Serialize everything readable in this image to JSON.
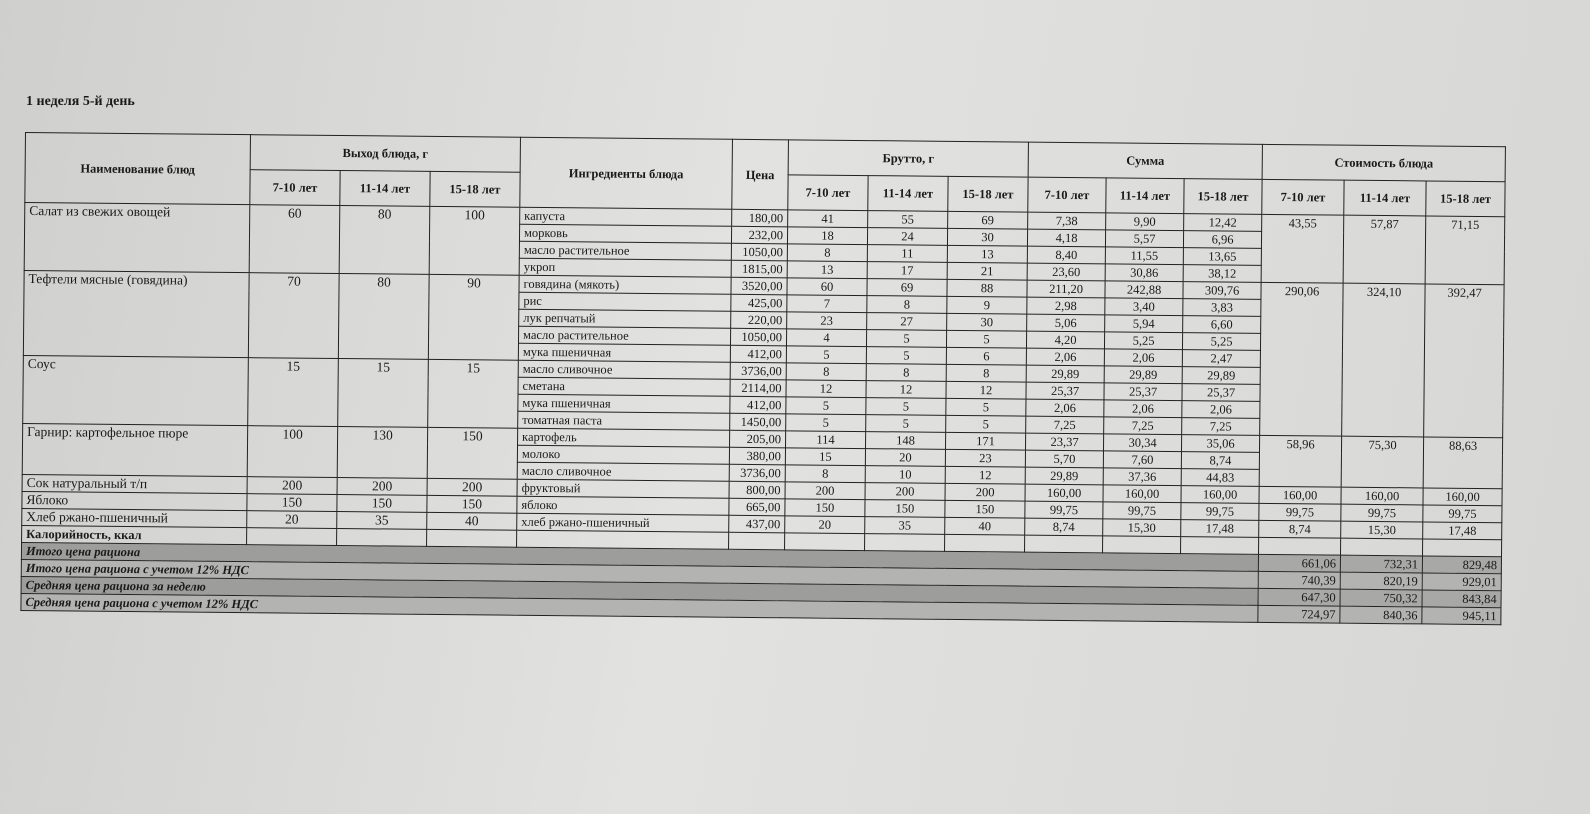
{
  "title": "1 неделя 5-й день",
  "headers": {
    "dish": "Наименование блюд",
    "yield": "Выход блюда, г",
    "ingredients": "Ингредиенты блюда",
    "price": "Цена",
    "brutto": "Брутто, г",
    "sum": "Сумма",
    "cost": "Стоимость блюда",
    "ages": [
      "7-10 лет",
      "11-14 лет",
      "15-18 лет"
    ]
  },
  "dishes": [
    {
      "name": "Салат из свежих овощей",
      "yield": [
        "60",
        "80",
        "100"
      ],
      "ingredients": [
        [
          "капуста",
          "180,00",
          "41",
          "55",
          "69",
          "7,38",
          "9,90",
          "12,42"
        ],
        [
          "морковь",
          "232,00",
          "18",
          "24",
          "30",
          "4,18",
          "5,57",
          "6,96"
        ],
        [
          "масло растительное",
          "1050,00",
          "8",
          "11",
          "13",
          "8,40",
          "11,55",
          "13,65"
        ],
        [
          "укроп",
          "1815,00",
          "13",
          "17",
          "21",
          "23,60",
          "30,86",
          "38,12"
        ]
      ]
    },
    {
      "name": "Тефтели мясные (говядина)",
      "yield": [
        "70",
        "80",
        "90"
      ],
      "ingredients": [
        [
          "говядина (мякоть)",
          "3520,00",
          "60",
          "69",
          "88",
          "211,20",
          "242,88",
          "309,76"
        ],
        [
          "рис",
          "425,00",
          "7",
          "8",
          "9",
          "2,98",
          "3,40",
          "3,83"
        ],
        [
          "лук репчатый",
          "220,00",
          "23",
          "27",
          "30",
          "5,06",
          "5,94",
          "6,60"
        ],
        [
          "масло растительное",
          "1050,00",
          "4",
          "5",
          "5",
          "4,20",
          "5,25",
          "5,25"
        ],
        [
          "мука пшеничная",
          "412,00",
          "5",
          "5",
          "6",
          "2,06",
          "2,06",
          "2,47"
        ]
      ]
    },
    {
      "name": "Соус",
      "yield": [
        "15",
        "15",
        "15"
      ],
      "ingredients": [
        [
          "масло сливочное",
          "3736,00",
          "8",
          "8",
          "8",
          "29,89",
          "29,89",
          "29,89"
        ],
        [
          "сметана",
          "2114,00",
          "12",
          "12",
          "12",
          "25,37",
          "25,37",
          "25,37"
        ],
        [
          "мука пшеничная",
          "412,00",
          "5",
          "5",
          "5",
          "2,06",
          "2,06",
          "2,06"
        ],
        [
          "томатная паста",
          "1450,00",
          "5",
          "5",
          "5",
          "7,25",
          "7,25",
          "7,25"
        ]
      ]
    },
    {
      "name": "Гарнир:  картофельное пюре",
      "yield": [
        "100",
        "130",
        "150"
      ],
      "ingredients": [
        [
          "картофель",
          "205,00",
          "114",
          "148",
          "171",
          "23,37",
          "30,34",
          "35,06"
        ],
        [
          "молоко",
          "380,00",
          "15",
          "20",
          "23",
          "5,70",
          "7,60",
          "8,74"
        ],
        [
          "масло сливочное",
          "3736,00",
          "8",
          "10",
          "12",
          "29,89",
          "37,36",
          "44,83"
        ]
      ]
    },
    {
      "name": "Сок натуральный т/п",
      "yield": [
        "200",
        "200",
        "200"
      ],
      "ingredients": [
        [
          "фруктовый",
          "800,00",
          "200",
          "200",
          "200",
          "160,00",
          "160,00",
          "160,00"
        ]
      ]
    },
    {
      "name": "Яблоко",
      "yield": [
        "150",
        "150",
        "150"
      ],
      "ingredients": [
        [
          "яблоко",
          "665,00",
          "150",
          "150",
          "150",
          "99,75",
          "99,75",
          "99,75"
        ]
      ]
    },
    {
      "name": "Хлеб ржано-пшеничный",
      "yield": [
        "20",
        "35",
        "40"
      ],
      "ingredients": [
        [
          "хлеб ржано-пшеничный",
          "437,00",
          "20",
          "35",
          "40",
          "8,74",
          "15,30",
          "17,48"
        ]
      ]
    }
  ],
  "cost_groups": [
    {
      "rows": 4,
      "values": [
        "43,55",
        "57,87",
        "71,15"
      ]
    },
    {
      "rows": 9,
      "values": [
        "290,06",
        "324,10",
        "392,47"
      ]
    },
    {
      "rows": 3,
      "values": [
        "58,96",
        "75,30",
        "88,63"
      ]
    },
    {
      "rows": 1,
      "values": [
        "160,00",
        "160,00",
        "160,00"
      ]
    },
    {
      "rows": 1,
      "values": [
        "99,75",
        "99,75",
        "99,75"
      ]
    },
    {
      "rows": 1,
      "values": [
        "8,74",
        "15,30",
        "17,48"
      ]
    }
  ],
  "calories_label": "Калорийность, ккал",
  "totals": [
    {
      "label": "Итого цена рациона",
      "values": [
        "661,06",
        "732,31",
        "829,48"
      ]
    },
    {
      "label": "Итого цена рациона с учетом 12% НДС",
      "values": [
        "740,39",
        "820,19",
        "929,01"
      ]
    },
    {
      "label": "Средняя цена рациона за неделю",
      "values": [
        "647,30",
        "750,32",
        "843,84"
      ]
    },
    {
      "label": "Средняя цена рациона с учетом 12% НДС",
      "values": [
        "724,97",
        "840,36",
        "945,11"
      ]
    }
  ]
}
